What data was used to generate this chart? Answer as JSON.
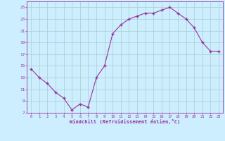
{
  "x": [
    0,
    1,
    2,
    3,
    4,
    5,
    6,
    7,
    8,
    9,
    10,
    11,
    12,
    13,
    14,
    15,
    16,
    17,
    18,
    19,
    20,
    21,
    22,
    23
  ],
  "y": [
    14.5,
    13.0,
    12.0,
    10.5,
    9.5,
    7.5,
    8.5,
    8.0,
    13.0,
    15.0,
    20.5,
    22.0,
    23.0,
    23.5,
    24.0,
    24.0,
    24.5,
    25.0,
    24.0,
    23.0,
    21.5,
    19.0,
    17.5,
    17.5
  ],
  "line_color": "#993399",
  "marker": "+",
  "marker_size": 3,
  "background_color": "#cceeff",
  "grid_color": "#aacccc",
  "xlabel": "Windchill (Refroidissement éolien,°C)",
  "xlabel_color": "#993399",
  "tick_color": "#993399",
  "ylim": [
    7,
    26
  ],
  "xlim": [
    -0.5,
    23.5
  ],
  "yticks": [
    7,
    9,
    11,
    13,
    15,
    17,
    19,
    21,
    23,
    25
  ],
  "xticks": [
    0,
    1,
    2,
    3,
    4,
    5,
    6,
    7,
    8,
    9,
    10,
    11,
    12,
    13,
    14,
    15,
    16,
    17,
    18,
    19,
    20,
    21,
    22,
    23
  ]
}
